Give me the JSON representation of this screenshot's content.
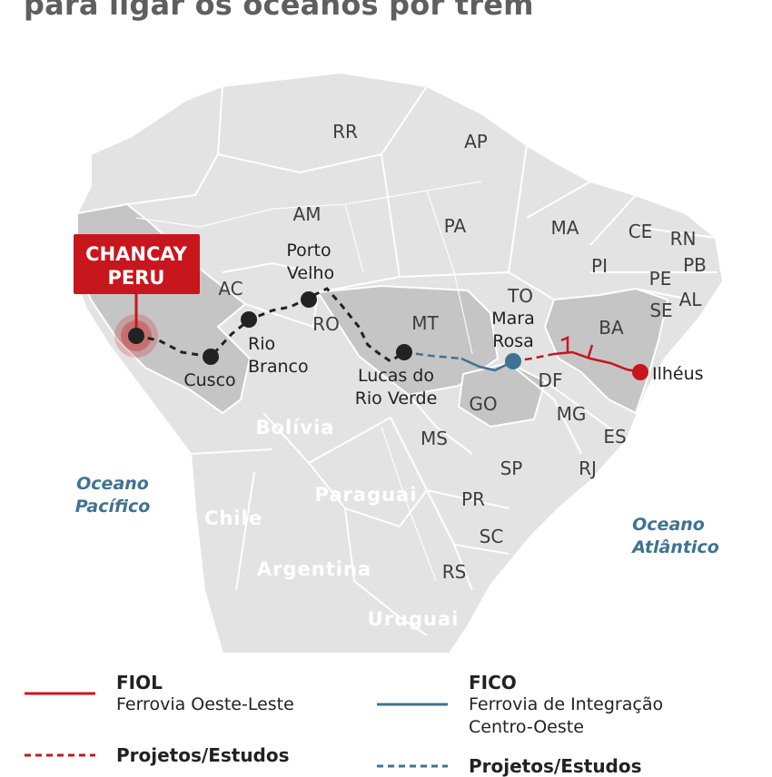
{
  "title": "para ligar os oceanos por trem",
  "colors": {
    "fiol": "#c8161d",
    "fico": "#3f7391",
    "land": "#e3e3e3",
    "highlight": "#c5c5c5"
  },
  "oceans": {
    "pacific": [
      "Oceano",
      "Pacífico"
    ],
    "atlantic": [
      "Oceano",
      "Atlântico"
    ]
  },
  "countries": {
    "bolivia": "Bolívia",
    "paraguay": "Paraguai",
    "chile": "Chile",
    "argentina": "Argentina",
    "uruguay": "Uruguai"
  },
  "states": [
    "RR",
    "AP",
    "AM",
    "PA",
    "MA",
    "CE",
    "RN",
    "PB",
    "PI",
    "PE",
    "AC",
    "AL",
    "SE",
    "TO",
    "RO",
    "MT",
    "BA",
    "DF",
    "GO",
    "MG",
    "MS",
    "ES",
    "SP",
    "RJ",
    "PR",
    "SC",
    "RS"
  ],
  "callout": {
    "line1": "CHANCAY",
    "line2": "PERU"
  },
  "cities": {
    "porto_velho": [
      "Porto",
      "Velho"
    ],
    "rio_branco": [
      "Rio",
      "Branco"
    ],
    "cusco": "Cusco",
    "lucas": [
      "Lucas do",
      "Rio Verde"
    ],
    "mara_rosa": [
      "Mara",
      "Rosa"
    ],
    "ilheus": "Ilhéus"
  },
  "legend": {
    "fiol": {
      "code": "FIOL",
      "name": "Ferrovia Oeste-Leste",
      "projects": "Projetos/Estudos"
    },
    "fico": {
      "code": "FICO",
      "name_line1": "Ferrovia de Integração",
      "name_line2": "Centro-Oeste",
      "projects": "Projetos/Estudos"
    }
  }
}
